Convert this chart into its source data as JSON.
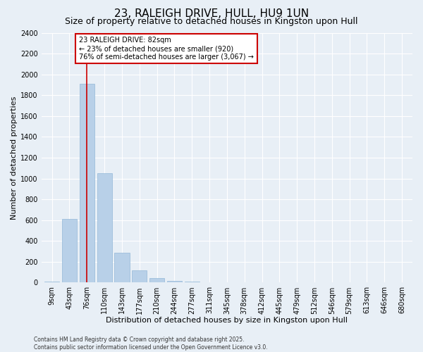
{
  "title": "23, RALEIGH DRIVE, HULL, HU9 1UN",
  "subtitle": "Size of property relative to detached houses in Kingston upon Hull",
  "xlabel": "Distribution of detached houses by size in Kingston upon Hull",
  "ylabel": "Number of detached properties",
  "categories": [
    "9sqm",
    "43sqm",
    "76sqm",
    "110sqm",
    "143sqm",
    "177sqm",
    "210sqm",
    "244sqm",
    "277sqm",
    "311sqm",
    "345sqm",
    "378sqm",
    "412sqm",
    "445sqm",
    "479sqm",
    "512sqm",
    "546sqm",
    "579sqm",
    "613sqm",
    "646sqm",
    "680sqm"
  ],
  "values": [
    10,
    610,
    1910,
    1050,
    290,
    115,
    47,
    18,
    10,
    5,
    2,
    0,
    0,
    0,
    0,
    0,
    0,
    0,
    0,
    0,
    0
  ],
  "bar_color": "#b8d0e8",
  "bar_edge_color": "#93b8d8",
  "vline_x": 2,
  "vline_color": "#cc0000",
  "annotation_title": "23 RALEIGH DRIVE: 82sqm",
  "annotation_line1": "← 23% of detached houses are smaller (920)",
  "annotation_line2": "76% of semi-detached houses are larger (3,067) →",
  "annotation_box_color": "#cc0000",
  "annotation_fill": "#ffffff",
  "ylim": [
    0,
    2400
  ],
  "yticks": [
    0,
    200,
    400,
    600,
    800,
    1000,
    1200,
    1400,
    1600,
    1800,
    2000,
    2200,
    2400
  ],
  "footer1": "Contains HM Land Registry data © Crown copyright and database right 2025.",
  "footer2": "Contains public sector information licensed under the Open Government Licence v3.0.",
  "bg_color": "#e8eff6",
  "grid_color": "#ffffff",
  "title_fontsize": 11,
  "subtitle_fontsize": 9,
  "tick_fontsize": 7,
  "xlabel_fontsize": 8,
  "ylabel_fontsize": 8,
  "annotation_fontsize": 7,
  "footer_fontsize": 5.5
}
